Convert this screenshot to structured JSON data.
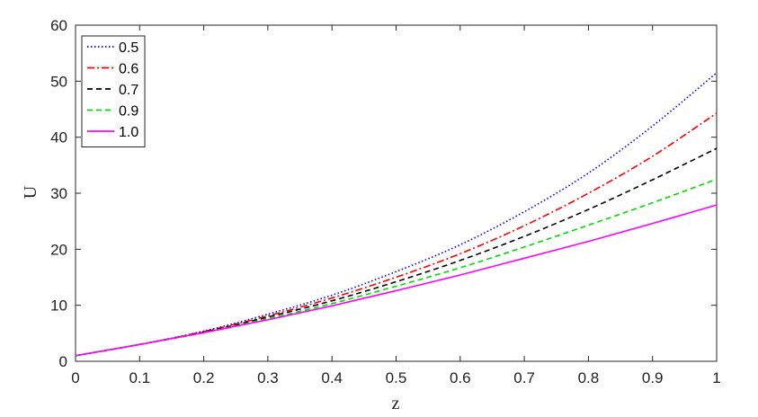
{
  "chart_data": {
    "type": "line",
    "title": "",
    "xlabel": "z",
    "ylabel": "U",
    "xlim": [
      0,
      1
    ],
    "ylim": [
      0,
      60
    ],
    "xticks": [
      0,
      0.1,
      0.2,
      0.3,
      0.4,
      0.5,
      0.6,
      0.7,
      0.8,
      0.9,
      1
    ],
    "xtick_labels": [
      "0",
      "0.1",
      "0.2",
      "0.3",
      "0.4",
      "0.5",
      "0.6",
      "0.7",
      "0.8",
      "0.9",
      "1"
    ],
    "yticks": [
      0,
      10,
      20,
      30,
      40,
      50,
      60
    ],
    "ytick_labels": [
      "0",
      "10",
      "20",
      "30",
      "40",
      "50",
      "60"
    ],
    "grid": false,
    "legend_position": "top-left",
    "x": [
      0,
      0.1,
      0.2,
      0.3,
      0.4,
      0.5,
      0.6,
      0.7,
      0.8,
      0.9,
      1.0
    ],
    "series": [
      {
        "name": "0.5",
        "color": "#0000ff",
        "dash": "dotted",
        "values": [
          1.0,
          3.0,
          5.4,
          8.4,
          11.8,
          16.0,
          20.8,
          26.7,
          33.6,
          42.0,
          51.5
        ]
      },
      {
        "name": "0.6",
        "color": "#ff0000",
        "dash": "dashdot",
        "values": [
          1.0,
          3.0,
          5.3,
          8.1,
          11.3,
          15.0,
          19.2,
          24.2,
          30.0,
          36.6,
          44.3
        ]
      },
      {
        "name": "0.7",
        "color": "#000000",
        "dash": "dashed",
        "values": [
          1.0,
          3.0,
          5.2,
          7.9,
          10.8,
          14.2,
          18.0,
          22.3,
          27.1,
          32.4,
          38.0
        ]
      },
      {
        "name": "0.9",
        "color": "#00dd00",
        "dash": "dashed",
        "values": [
          1.0,
          3.0,
          5.1,
          7.6,
          10.3,
          13.4,
          16.7,
          20.4,
          24.3,
          28.3,
          32.5
        ]
      },
      {
        "name": "1.0",
        "color": "#ff00ff",
        "dash": "solid",
        "values": [
          1.0,
          3.0,
          5.1,
          7.4,
          9.9,
          12.6,
          15.4,
          18.4,
          21.4,
          24.6,
          27.9
        ]
      }
    ]
  }
}
